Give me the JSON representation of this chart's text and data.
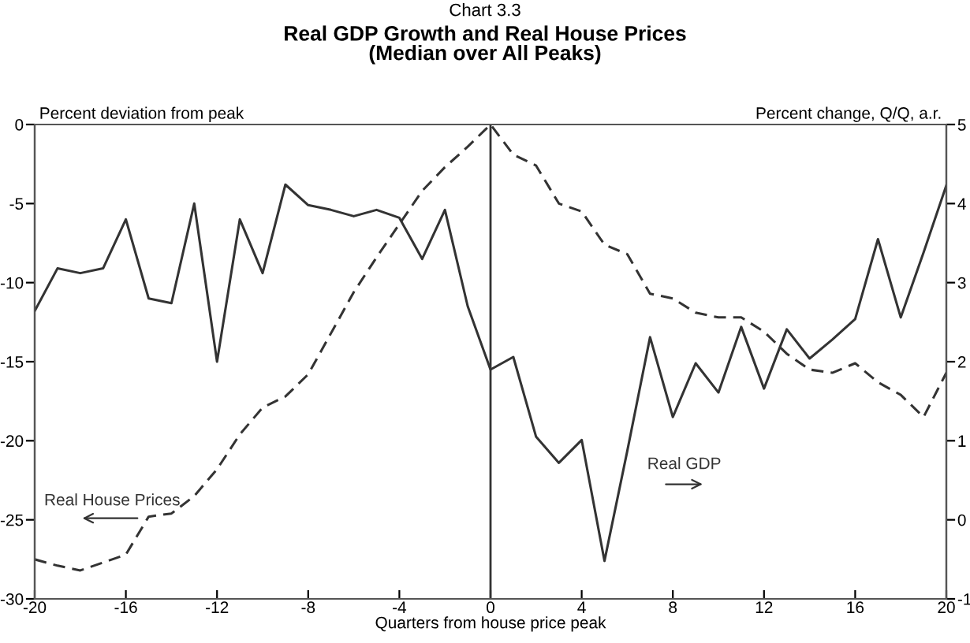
{
  "chart_data": {
    "type": "line",
    "title": "Real GDP Growth and Real House Prices\n(Median over All Peaks)",
    "annotations": [
      "Chart 3.3"
    ],
    "xlabel": "Quarters from house price peak",
    "ylabel": "Percent deviation from peak",
    "y2label": "Percent change, Q/Q, a.r.",
    "x": [
      -20,
      -19,
      -18,
      -17,
      -16,
      -15,
      -14,
      -13,
      -12,
      -11,
      -10,
      -9,
      -8,
      -7,
      -6,
      -5,
      -4,
      -3,
      -2,
      -1,
      0,
      1,
      2,
      3,
      4,
      5,
      6,
      7,
      8,
      9,
      10,
      11,
      12,
      13,
      14,
      15,
      16,
      17,
      18,
      19,
      20
    ],
    "series": [
      {
        "name": "Real House Prices",
        "color": "#333333",
        "line_style": "dashed",
        "values": [
          -27.5,
          -27.9,
          -28.2,
          -27.7,
          -27.2,
          -24.8,
          -24.6,
          -23.5,
          -21.8,
          -19.6,
          -17.9,
          -17.2,
          -15.8,
          -13.2,
          -10.6,
          -8.4,
          -6.3,
          -4.2,
          -2.7,
          -1.4,
          0,
          -1.9,
          -2.6,
          -5.0,
          -5.5,
          -7.6,
          -8.2,
          -10.7,
          -11.0,
          -11.9,
          -12.2,
          -12.2,
          -13.1,
          -14.5,
          -15.5,
          -15.7,
          -15.1,
          -16.3,
          -17.1,
          -18.5,
          -15.7
        ]
      },
      {
        "name": "Real GDP",
        "color": "#333333",
        "line_style": "solid",
        "axis": "y2",
        "values": [
          2.64,
          3.18,
          3.12,
          3.18,
          3.8,
          2.8,
          2.74,
          4.0,
          2.0,
          3.8,
          3.12,
          4.24,
          3.98,
          3.92,
          3.84,
          3.92,
          3.82,
          3.3,
          3.92,
          2.7,
          1.9,
          2.06,
          1.05,
          0.72,
          1.01,
          -0.52,
          0.87,
          2.31,
          1.3,
          1.98,
          1.61,
          2.44,
          1.66,
          2.41,
          2.04,
          2.28,
          2.54,
          3.55,
          2.56,
          3.38,
          4.23
        ]
      }
    ],
    "xlim": [
      -20,
      20
    ],
    "xticks": [
      -20,
      -16,
      -12,
      -8,
      -4,
      0,
      4,
      8,
      12,
      16,
      20
    ],
    "ylim": [
      -30,
      0
    ],
    "yticks": [
      -30,
      -25,
      -20,
      -15,
      -10,
      -5,
      0
    ],
    "y2lim": [
      -1,
      5
    ],
    "y2ticks": [
      -1,
      0,
      1,
      2,
      3,
      4,
      5
    ],
    "ref_lines": [
      {
        "axis": "x",
        "value": 0,
        "color": "#333333"
      }
    ],
    "grid": false,
    "legend": false,
    "marker": "none"
  }
}
